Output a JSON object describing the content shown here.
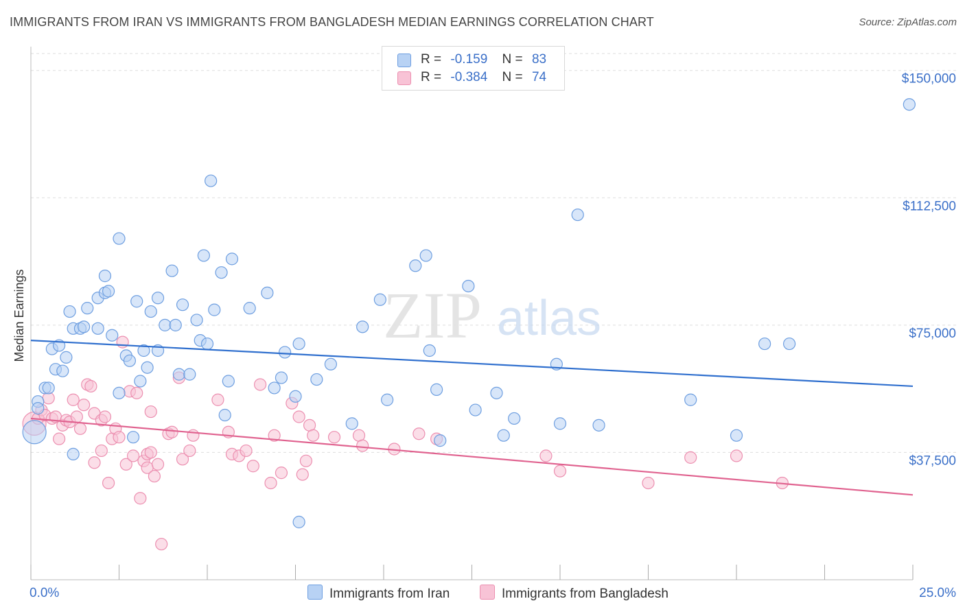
{
  "title": "IMMIGRANTS FROM IRAN VS IMMIGRANTS FROM BANGLADESH MEDIAN EARNINGS CORRELATION CHART",
  "source": "Source: ZipAtlas.com",
  "watermark": {
    "zip": "ZIP",
    "atlas": "atlas"
  },
  "legend": {
    "iran": {
      "r_label": "R =",
      "r_value": "-0.159",
      "n_label": "N =",
      "n_value": "83"
    },
    "bangladesh": {
      "r_label": "R =",
      "r_value": "-0.384",
      "n_label": "N =",
      "n_value": "74"
    }
  },
  "colors": {
    "iran_fill": "#b8d2f4",
    "iran_stroke": "#6d9ee0",
    "iran_line": "#2f6fce",
    "bangladesh_fill": "#f8c3d6",
    "bangladesh_stroke": "#ec8fb0",
    "bangladesh_line": "#e0628f",
    "tick_label": "#3a6fc8",
    "grid": "#dddddd"
  },
  "chart_data": {
    "type": "scatter",
    "title": "IMMIGRANTS FROM IRAN VS IMMIGRANTS FROM BANGLADESH MEDIAN EARNINGS CORRELATION CHART",
    "xlabel": "",
    "ylabel": "Median Earnings",
    "xlim": [
      0,
      25
    ],
    "ylim": [
      0,
      155000
    ],
    "x_tick_labels": [
      "0.0%",
      "25.0%"
    ],
    "y_ticks": [
      37500,
      75000,
      112500,
      150000
    ],
    "y_tick_labels": [
      "$37,500",
      "$75,000",
      "$112,500",
      "$150,000"
    ],
    "grid": true,
    "legend_position": "top-center",
    "series": [
      {
        "name": "Immigrants from Iran",
        "trend": {
          "x": [
            0,
            25
          ],
          "y": [
            70500,
            57000
          ]
        },
        "points": [
          [
            0.1,
            43500
          ],
          [
            0.2,
            52500
          ],
          [
            0.2,
            50500
          ],
          [
            0.4,
            56500
          ],
          [
            0.5,
            56500
          ],
          [
            0.6,
            68000
          ],
          [
            0.7,
            62000
          ],
          [
            0.8,
            69000
          ],
          [
            0.9,
            61500
          ],
          [
            1.0,
            65500
          ],
          [
            1.1,
            79000
          ],
          [
            1.2,
            74000
          ],
          [
            1.4,
            74000
          ],
          [
            1.5,
            74500
          ],
          [
            1.6,
            80000
          ],
          [
            1.9,
            74000
          ],
          [
            1.9,
            83000
          ],
          [
            2.1,
            84500
          ],
          [
            2.1,
            89500
          ],
          [
            2.2,
            85000
          ],
          [
            2.3,
            72000
          ],
          [
            2.5,
            55000
          ],
          [
            2.5,
            100500
          ],
          [
            2.7,
            66000
          ],
          [
            2.8,
            64500
          ],
          [
            2.9,
            42000
          ],
          [
            3.0,
            82000
          ],
          [
            3.1,
            58500
          ],
          [
            3.2,
            67500
          ],
          [
            3.3,
            62500
          ],
          [
            3.4,
            79000
          ],
          [
            3.6,
            67500
          ],
          [
            3.6,
            83000
          ],
          [
            3.8,
            75000
          ],
          [
            4.0,
            91000
          ],
          [
            4.1,
            75000
          ],
          [
            4.2,
            60500
          ],
          [
            4.3,
            81000
          ],
          [
            4.5,
            60500
          ],
          [
            4.7,
            76500
          ],
          [
            4.8,
            70500
          ],
          [
            4.9,
            95500
          ],
          [
            5.0,
            69500
          ],
          [
            5.1,
            117500
          ],
          [
            5.2,
            79500
          ],
          [
            5.4,
            90500
          ],
          [
            5.5,
            48500
          ],
          [
            5.6,
            58500
          ],
          [
            5.7,
            94500
          ],
          [
            6.2,
            80000
          ],
          [
            6.7,
            84500
          ],
          [
            6.9,
            56500
          ],
          [
            7.1,
            59500
          ],
          [
            7.2,
            67000
          ],
          [
            7.5,
            54000
          ],
          [
            7.6,
            69500
          ],
          [
            7.6,
            17000
          ],
          [
            8.1,
            59000
          ],
          [
            8.5,
            63500
          ],
          [
            9.1,
            46000
          ],
          [
            9.4,
            74500
          ],
          [
            9.9,
            82500
          ],
          [
            10.1,
            53000
          ],
          [
            10.9,
            92500
          ],
          [
            11.2,
            95500
          ],
          [
            11.3,
            67500
          ],
          [
            11.5,
            56000
          ],
          [
            11.6,
            41000
          ],
          [
            12.4,
            86500
          ],
          [
            12.6,
            50000
          ],
          [
            13.2,
            55000
          ],
          [
            13.4,
            42500
          ],
          [
            13.7,
            47500
          ],
          [
            14.9,
            63500
          ],
          [
            15.0,
            46000
          ],
          [
            15.5,
            107500
          ],
          [
            16.1,
            45500
          ],
          [
            18.7,
            53000
          ],
          [
            20.0,
            42500
          ],
          [
            20.8,
            69500
          ],
          [
            21.5,
            69500
          ],
          [
            24.9,
            140000
          ],
          [
            1.2,
            37000
          ]
        ]
      },
      {
        "name": "Immigrants from Bangladesh",
        "trend": {
          "x": [
            0,
            25
          ],
          "y": [
            47500,
            25000
          ]
        },
        "points": [
          [
            0.1,
            46000
          ],
          [
            0.2,
            47500
          ],
          [
            0.3,
            50000
          ],
          [
            0.4,
            48500
          ],
          [
            0.5,
            53500
          ],
          [
            0.6,
            47500
          ],
          [
            0.7,
            48000
          ],
          [
            0.8,
            41500
          ],
          [
            0.9,
            45500
          ],
          [
            1.0,
            47000
          ],
          [
            1.1,
            46500
          ],
          [
            1.2,
            53000
          ],
          [
            1.3,
            48000
          ],
          [
            1.4,
            44500
          ],
          [
            1.5,
            51500
          ],
          [
            1.6,
            57500
          ],
          [
            1.7,
            57000
          ],
          [
            1.8,
            49000
          ],
          [
            1.8,
            34500
          ],
          [
            2.0,
            38000
          ],
          [
            2.0,
            47000
          ],
          [
            2.1,
            48000
          ],
          [
            2.2,
            28500
          ],
          [
            2.3,
            41500
          ],
          [
            2.4,
            44500
          ],
          [
            2.5,
            42000
          ],
          [
            2.6,
            70000
          ],
          [
            2.7,
            34000
          ],
          [
            2.8,
            55500
          ],
          [
            2.9,
            36500
          ],
          [
            3.0,
            55000
          ],
          [
            3.2,
            35000
          ],
          [
            3.1,
            24000
          ],
          [
            3.3,
            37000
          ],
          [
            3.3,
            33000
          ],
          [
            3.4,
            49500
          ],
          [
            3.5,
            30500
          ],
          [
            3.6,
            34000
          ],
          [
            3.7,
            10500
          ],
          [
            3.9,
            43000
          ],
          [
            4.0,
            43500
          ],
          [
            4.2,
            59500
          ],
          [
            4.3,
            35500
          ],
          [
            4.5,
            38000
          ],
          [
            4.6,
            42500
          ],
          [
            5.3,
            53000
          ],
          [
            5.6,
            43500
          ],
          [
            5.7,
            37000
          ],
          [
            5.9,
            36500
          ],
          [
            6.1,
            38000
          ],
          [
            6.3,
            33500
          ],
          [
            6.5,
            57500
          ],
          [
            6.8,
            28500
          ],
          [
            6.9,
            42500
          ],
          [
            7.1,
            31500
          ],
          [
            7.4,
            52000
          ],
          [
            7.6,
            48000
          ],
          [
            7.7,
            31000
          ],
          [
            7.8,
            35000
          ],
          [
            7.9,
            45500
          ],
          [
            8.0,
            42500
          ],
          [
            8.6,
            42000
          ],
          [
            9.3,
            42500
          ],
          [
            9.4,
            39500
          ],
          [
            10.3,
            38500
          ],
          [
            11.0,
            43000
          ],
          [
            11.5,
            41500
          ],
          [
            14.6,
            36500
          ],
          [
            15.0,
            32000
          ],
          [
            17.5,
            28500
          ],
          [
            18.7,
            36000
          ],
          [
            20.0,
            36500
          ],
          [
            21.3,
            28500
          ],
          [
            3.4,
            37500
          ]
        ]
      }
    ]
  },
  "bottom_legend": {
    "iran_label": "Immigrants from Iran",
    "bangladesh_label": "Immigrants from Bangladesh"
  }
}
